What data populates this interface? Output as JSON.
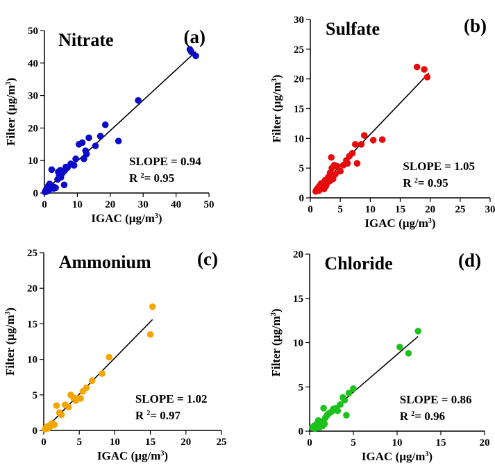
{
  "chart_data": [
    {
      "type": "scatter",
      "title": "Nitrate",
      "panel_label": "(a)",
      "xlabel": "IGAC (µg/m",
      "ylabel": "Filter (µg/m",
      "unit_exponent": "3",
      "unit_close": ")",
      "xlim": [
        0,
        50
      ],
      "ylim": [
        0,
        50
      ],
      "ticks": [
        0,
        10,
        20,
        30,
        40,
        50
      ],
      "color": "#0a0ac8",
      "stats": {
        "slope_text": "SLOPE = 0.94",
        "r_prefix": "R",
        "r_exponent": "2",
        "r_value": "= 0.95"
      },
      "fit_line": {
        "x": [
          0,
          46
        ],
        "y": [
          0.5,
          43.5
        ]
      },
      "points": [
        [
          0.2,
          0.3
        ],
        [
          0.4,
          0.8
        ],
        [
          0.6,
          1.2
        ],
        [
          0.8,
          0.5
        ],
        [
          1.0,
          1.6
        ],
        [
          1.2,
          2.2
        ],
        [
          1.4,
          1.0
        ],
        [
          1.6,
          2.8
        ],
        [
          1.8,
          1.3
        ],
        [
          2.0,
          1.5
        ],
        [
          2.2,
          7.2
        ],
        [
          2.5,
          2.0
        ],
        [
          2.8,
          1.4
        ],
        [
          3.0,
          1.8
        ],
        [
          3.4,
          1.6
        ],
        [
          4.0,
          4.2
        ],
        [
          4.2,
          6.5
        ],
        [
          4.5,
          5.5
        ],
        [
          4.8,
          7.0
        ],
        [
          5.0,
          4.8
        ],
        [
          5.5,
          6.2
        ],
        [
          6.0,
          2.5
        ],
        [
          6.2,
          7.0
        ],
        [
          6.5,
          8.0
        ],
        [
          7.0,
          7.8
        ],
        [
          8.0,
          9.0
        ],
        [
          9.0,
          8.5
        ],
        [
          9.5,
          10.5
        ],
        [
          10.5,
          15.0
        ],
        [
          11.5,
          15.5
        ],
        [
          12.0,
          10.5
        ],
        [
          12.5,
          13.0
        ],
        [
          12.8,
          12.0
        ],
        [
          13.5,
          17.0
        ],
        [
          15.5,
          14.5
        ],
        [
          17.0,
          17.5
        ],
        [
          18.5,
          21.0
        ],
        [
          22.5,
          16.0
        ],
        [
          28.5,
          28.5
        ],
        [
          44.2,
          44.2
        ],
        [
          44.6,
          43.5
        ],
        [
          46.0,
          42.2
        ]
      ]
    },
    {
      "type": "scatter",
      "title": "Sulfate",
      "panel_label": "(b)",
      "xlabel": "IGAC (µg/m",
      "ylabel": "Filter (µg/m",
      "unit_exponent": "3",
      "unit_close": ")",
      "xlim": [
        0,
        30
      ],
      "ylim": [
        0,
        30
      ],
      "ticks": [
        0,
        5,
        10,
        15,
        20,
        25,
        30
      ],
      "color": "#e60a0a",
      "stats": {
        "slope_text": "SLOPE = 1.05",
        "r_prefix": "R",
        "r_exponent": "2",
        "r_value": "= 0.95"
      },
      "fit_line": {
        "x": [
          0.8,
          19.8
        ],
        "y": [
          1.0,
          21.0
        ]
      },
      "points": [
        [
          0.9,
          1.1
        ],
        [
          1.0,
          1.3
        ],
        [
          1.2,
          1.6
        ],
        [
          1.4,
          1.2
        ],
        [
          1.5,
          2.0
        ],
        [
          1.6,
          1.4
        ],
        [
          1.8,
          2.4
        ],
        [
          2.0,
          1.7
        ],
        [
          2.2,
          2.6
        ],
        [
          2.3,
          1.5
        ],
        [
          2.5,
          3.0
        ],
        [
          2.6,
          2.0
        ],
        [
          2.8,
          2.5
        ],
        [
          3.0,
          3.5
        ],
        [
          3.2,
          2.8
        ],
        [
          3.3,
          4.2
        ],
        [
          3.4,
          3.0
        ],
        [
          3.5,
          6.8
        ],
        [
          3.6,
          5.0
        ],
        [
          3.8,
          3.2
        ],
        [
          4.0,
          5.5
        ],
        [
          4.2,
          4.0
        ],
        [
          4.5,
          5.3
        ],
        [
          5.0,
          4.5
        ],
        [
          5.5,
          5.5
        ],
        [
          6.0,
          6.3
        ],
        [
          6.2,
          5.8
        ],
        [
          6.5,
          7.0
        ],
        [
          7.0,
          7.5
        ],
        [
          7.5,
          9.0
        ],
        [
          7.8,
          5.8
        ],
        [
          8.5,
          9.0
        ],
        [
          9.0,
          10.5
        ],
        [
          10.5,
          9.7
        ],
        [
          12.0,
          9.8
        ],
        [
          17.8,
          22.0
        ],
        [
          19.0,
          21.6
        ],
        [
          19.5,
          20.3
        ]
      ]
    },
    {
      "type": "scatter",
      "title": "Ammonium",
      "panel_label": "(c)",
      "xlabel": "IGAC (µg/m",
      "ylabel": "Filter (µg/m",
      "unit_exponent": "3",
      "unit_close": ")",
      "xlim": [
        0,
        25
      ],
      "ylim": [
        0,
        25
      ],
      "ticks": [
        0,
        5,
        10,
        15,
        20,
        25
      ],
      "color": "#f5a500",
      "stats": {
        "slope_text": "SLOPE = 1.02",
        "r_prefix": "R",
        "r_exponent": "2",
        "r_value": "= 0.97"
      },
      "fit_line": {
        "x": [
          0.2,
          15.3
        ],
        "y": [
          0.2,
          15.6
        ]
      },
      "points": [
        [
          0.2,
          0.2
        ],
        [
          0.4,
          0.5
        ],
        [
          0.6,
          0.3
        ],
        [
          0.8,
          0.7
        ],
        [
          1.0,
          0.6
        ],
        [
          1.2,
          1.0
        ],
        [
          1.5,
          0.8
        ],
        [
          1.8,
          3.5
        ],
        [
          2.2,
          2.5
        ],
        [
          2.5,
          2.2
        ],
        [
          3.0,
          3.6
        ],
        [
          3.5,
          3.3
        ],
        [
          3.8,
          5.0
        ],
        [
          4.2,
          4.6
        ],
        [
          4.5,
          4.2
        ],
        [
          4.8,
          4.5
        ],
        [
          5.2,
          4.5
        ],
        [
          5.5,
          5.5
        ],
        [
          6.0,
          6.0
        ],
        [
          6.8,
          7.0
        ],
        [
          8.2,
          8.0
        ],
        [
          9.2,
          10.3
        ],
        [
          15.0,
          13.5
        ],
        [
          15.3,
          17.4
        ]
      ]
    },
    {
      "type": "scatter",
      "title": "Chloride",
      "panel_label": "(d)",
      "xlabel": "IGAC (µg/m",
      "ylabel": "Filter (µg/m",
      "unit_exponent": "3",
      "unit_close": ")",
      "xlim": [
        0,
        20
      ],
      "ylim": [
        0,
        20
      ],
      "ticks": [
        0,
        5,
        10,
        15,
        20
      ],
      "color": "#1cc21c",
      "stats": {
        "slope_text": "SLOPE = 0.86",
        "r_prefix": "R",
        "r_exponent": "2",
        "r_value": "= 0.96"
      },
      "fit_line": {
        "x": [
          0.3,
          12.4
        ],
        "y": [
          0.4,
          10.7
        ]
      },
      "points": [
        [
          0.3,
          0.4
        ],
        [
          0.5,
          0.6
        ],
        [
          0.6,
          0.3
        ],
        [
          0.8,
          0.8
        ],
        [
          0.9,
          0.5
        ],
        [
          1.0,
          1.2
        ],
        [
          1.1,
          0.4
        ],
        [
          1.2,
          0.7
        ],
        [
          1.3,
          1.0
        ],
        [
          1.5,
          0.6
        ],
        [
          1.6,
          2.6
        ],
        [
          1.7,
          0.8
        ],
        [
          1.8,
          1.5
        ],
        [
          2.0,
          1.8
        ],
        [
          2.2,
          2.0
        ],
        [
          2.5,
          2.2
        ],
        [
          2.7,
          2.5
        ],
        [
          3.0,
          2.6
        ],
        [
          3.2,
          2.3
        ],
        [
          3.5,
          3.0
        ],
        [
          3.8,
          3.8
        ],
        [
          4.0,
          3.5
        ],
        [
          4.2,
          1.8
        ],
        [
          4.5,
          4.3
        ],
        [
          5.0,
          4.8
        ],
        [
          10.3,
          9.5
        ],
        [
          11.3,
          8.8
        ],
        [
          12.4,
          11.3
        ]
      ]
    }
  ]
}
